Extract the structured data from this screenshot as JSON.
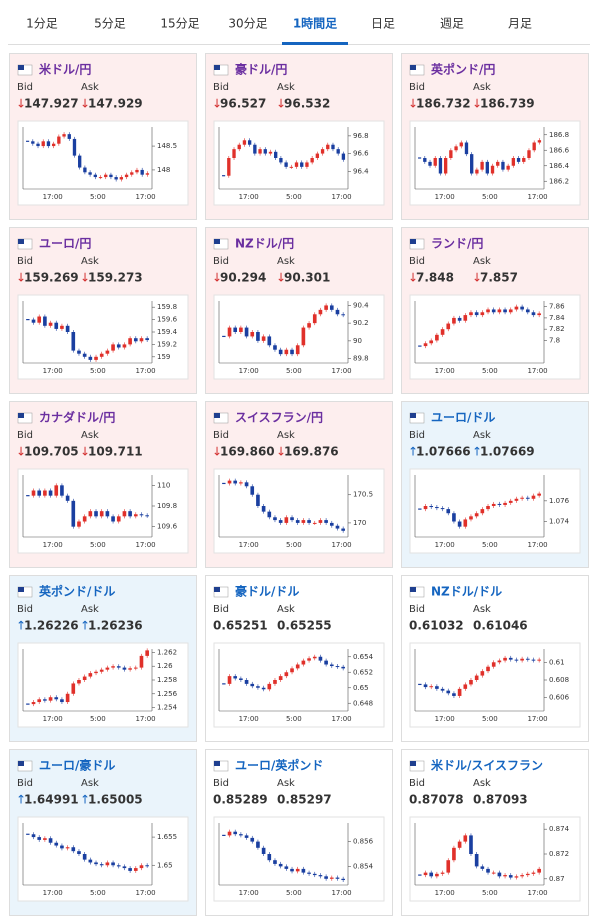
{
  "tabs": [
    "1分足",
    "5分足",
    "15分足",
    "30分足",
    "1時間足",
    "日足",
    "週足",
    "月足"
  ],
  "active_tab": 4,
  "labels": {
    "bid": "Bid",
    "ask": "Ask"
  },
  "cards": [
    {
      "name": "米ドル/円",
      "trend": "down",
      "arrow": "↓",
      "bid": "147.927",
      "ask": "147.929",
      "chart": {
        "type": "candlestick",
        "ylim": [
          147.6,
          148.9
        ],
        "yticks": [
          148,
          148.5
        ],
        "xticks": [
          "17:00",
          "5:00",
          "17:00"
        ],
        "close": [
          148.6,
          148.55,
          148.5,
          148.6,
          148.5,
          148.55,
          148.7,
          148.75,
          148.65,
          148.3,
          148.05,
          147.95,
          147.9,
          147.85,
          147.85,
          147.9,
          147.85,
          147.8,
          147.85,
          147.9,
          147.95,
          148.0,
          147.9,
          147.93
        ]
      }
    },
    {
      "name": "豪ドル/円",
      "trend": "down",
      "arrow": "↓",
      "bid": "96.527",
      "ask": "96.532",
      "chart": {
        "type": "candlestick",
        "ylim": [
          96.2,
          96.9
        ],
        "yticks": [
          96.4,
          96.6,
          96.8
        ],
        "xticks": [
          "17:00",
          "5:00",
          "17:00"
        ],
        "close": [
          96.35,
          96.55,
          96.65,
          96.7,
          96.75,
          96.7,
          96.6,
          96.65,
          96.6,
          96.62,
          96.55,
          96.5,
          96.45,
          96.45,
          96.5,
          96.45,
          96.5,
          96.55,
          96.6,
          96.65,
          96.7,
          96.65,
          96.6,
          96.53
        ]
      }
    },
    {
      "name": "英ポンド/円",
      "trend": "down",
      "arrow": "↓",
      "bid": "186.732",
      "ask": "186.739",
      "chart": {
        "type": "candlestick",
        "ylim": [
          186.1,
          186.9
        ],
        "yticks": [
          186.2,
          186.4,
          186.6,
          186.8
        ],
        "xticks": [
          "17:00",
          "5:00",
          "17:00"
        ],
        "close": [
          186.5,
          186.45,
          186.4,
          186.5,
          186.3,
          186.5,
          186.6,
          186.65,
          186.7,
          186.55,
          186.3,
          186.35,
          186.45,
          186.3,
          186.4,
          186.45,
          186.35,
          186.4,
          186.5,
          186.45,
          186.5,
          186.6,
          186.7,
          186.73
        ]
      }
    },
    {
      "name": "ユーロ/円",
      "trend": "down",
      "arrow": "↓",
      "bid": "159.269",
      "ask": "159.273",
      "chart": {
        "type": "candlestick",
        "ylim": [
          158.9,
          159.9
        ],
        "yticks": [
          159,
          159.2,
          159.4,
          159.6,
          159.8
        ],
        "xticks": [
          "17:00",
          "5:00",
          "17:00"
        ],
        "close": [
          159.6,
          159.55,
          159.65,
          159.5,
          159.55,
          159.45,
          159.5,
          159.4,
          159.1,
          159.05,
          159.0,
          158.95,
          159.0,
          159.05,
          159.1,
          159.2,
          159.15,
          159.2,
          159.3,
          159.25,
          159.3,
          159.27
        ]
      }
    },
    {
      "name": "NZドル/円",
      "trend": "down",
      "arrow": "↓",
      "bid": "90.294",
      "ask": "90.301",
      "chart": {
        "type": "candlestick",
        "ylim": [
          89.75,
          90.45
        ],
        "yticks": [
          89.8,
          90,
          90.2,
          90.4
        ],
        "xticks": [
          "17:00",
          "5:00",
          "17:00"
        ],
        "close": [
          90.05,
          90.15,
          90.1,
          90.15,
          90.05,
          90.1,
          90.0,
          90.05,
          89.95,
          89.9,
          89.85,
          89.9,
          89.85,
          89.95,
          90.15,
          90.2,
          90.3,
          90.35,
          90.4,
          90.35,
          90.3,
          90.29
        ]
      }
    },
    {
      "name": "ランド/円",
      "trend": "down",
      "arrow": "↓",
      "bid": "7.848",
      "ask": "7.857",
      "chart": {
        "type": "candlestick",
        "ylim": [
          7.76,
          7.87
        ],
        "yticks": [
          7.8,
          7.82,
          7.84,
          7.86
        ],
        "xticks": [
          "17:00",
          "5:00",
          "17:00"
        ],
        "close": [
          7.79,
          7.795,
          7.8,
          7.81,
          7.82,
          7.83,
          7.84,
          7.835,
          7.845,
          7.85,
          7.845,
          7.85,
          7.855,
          7.85,
          7.855,
          7.85,
          7.855,
          7.86,
          7.855,
          7.85,
          7.845,
          7.848
        ]
      }
    },
    {
      "name": "カナダドル/円",
      "trend": "down",
      "arrow": "↓",
      "bid": "109.705",
      "ask": "109.711",
      "chart": {
        "type": "candlestick",
        "ylim": [
          109.5,
          110.1
        ],
        "yticks": [
          109.6,
          109.8,
          110
        ],
        "xticks": [
          "17:00",
          "5:00",
          "17:00"
        ],
        "close": [
          109.9,
          109.95,
          109.9,
          109.95,
          109.9,
          110.0,
          109.9,
          109.85,
          109.6,
          109.65,
          109.7,
          109.75,
          109.7,
          109.75,
          109.7,
          109.65,
          109.7,
          109.75,
          109.7,
          109.72,
          109.71,
          109.705
        ]
      }
    },
    {
      "name": "スイスフラン/円",
      "trend": "down",
      "arrow": "↓",
      "bid": "169.860",
      "ask": "169.876",
      "chart": {
        "type": "candlestick",
        "ylim": [
          169.75,
          170.85
        ],
        "yticks": [
          170,
          170.5
        ],
        "xticks": [
          "17:00",
          "5:00",
          "17:00"
        ],
        "close": [
          170.7,
          170.75,
          170.7,
          170.72,
          170.65,
          170.5,
          170.3,
          170.2,
          170.1,
          170.05,
          170.0,
          170.1,
          170.05,
          170.0,
          170.05,
          170.0,
          170.0,
          170.05,
          170.0,
          169.95,
          169.9,
          169.86
        ]
      }
    },
    {
      "name": "ユーロ/ドル",
      "trend": "up",
      "arrow": "↑",
      "bid": "1.07666",
      "ask": "1.07669",
      "chart": {
        "type": "candlestick",
        "ylim": [
          1.0725,
          1.0785
        ],
        "yticks": [
          1.074,
          1.076
        ],
        "xticks": [
          "17:00",
          "5:00",
          "17:00"
        ],
        "close": [
          1.0752,
          1.0755,
          1.0754,
          1.0753,
          1.0752,
          1.0748,
          1.074,
          1.0735,
          1.0742,
          1.0745,
          1.0748,
          1.0752,
          1.0755,
          1.0757,
          1.0756,
          1.0758,
          1.076,
          1.0762,
          1.0763,
          1.0762,
          1.0765,
          1.0767
        ]
      }
    },
    {
      "name": "英ポンド/ドル",
      "trend": "up",
      "arrow": "↑",
      "bid": "1.26226",
      "ask": "1.26236",
      "chart": {
        "type": "candlestick",
        "ylim": [
          1.2535,
          1.2625
        ],
        "yticks": [
          1.254,
          1.256,
          1.258,
          1.26,
          1.262
        ],
        "xticks": [
          "17:00",
          "5:00",
          "17:00"
        ],
        "close": [
          1.2545,
          1.2548,
          1.2552,
          1.255,
          1.2555,
          1.2552,
          1.2548,
          1.256,
          1.2575,
          1.258,
          1.2585,
          1.259,
          1.2592,
          1.2595,
          1.2598,
          1.26,
          1.2598,
          1.2595,
          1.2597,
          1.2598,
          1.2615,
          1.2623
        ]
      }
    },
    {
      "name": "豪ドル/ドル",
      "trend": null,
      "arrow": null,
      "bid": "0.65251",
      "ask": "0.65255",
      "chart": {
        "type": "candlestick",
        "ylim": [
          0.647,
          0.655
        ],
        "yticks": [
          0.648,
          0.65,
          0.652,
          0.654
        ],
        "xticks": [
          "17:00",
          "5:00",
          "17:00"
        ],
        "close": [
          0.6505,
          0.6515,
          0.6512,
          0.651,
          0.6505,
          0.6502,
          0.65,
          0.6498,
          0.6505,
          0.651,
          0.6515,
          0.652,
          0.6525,
          0.653,
          0.6535,
          0.6538,
          0.654,
          0.6535,
          0.653,
          0.6528,
          0.6527,
          0.6525
        ]
      }
    },
    {
      "name": "NZドル/ドル",
      "trend": null,
      "arrow": null,
      "bid": "0.61032",
      "ask": "0.61046",
      "chart": {
        "type": "candlestick",
        "ylim": [
          0.6045,
          0.6115
        ],
        "yticks": [
          0.606,
          0.608,
          0.61
        ],
        "xticks": [
          "17:00",
          "5:00",
          "17:00"
        ],
        "close": [
          0.6075,
          0.6072,
          0.6073,
          0.607,
          0.6068,
          0.6065,
          0.6062,
          0.607,
          0.6075,
          0.608,
          0.6085,
          0.609,
          0.6095,
          0.61,
          0.6102,
          0.6105,
          0.6103,
          0.6102,
          0.6104,
          0.6103,
          0.6102,
          0.6103
        ]
      }
    },
    {
      "name": "ユーロ/豪ドル",
      "trend": "up",
      "arrow": "↑",
      "bid": "1.64991",
      "ask": "1.65005",
      "chart": {
        "type": "candlestick",
        "ylim": [
          1.6465,
          1.6575
        ],
        "yticks": [
          1.65,
          1.655
        ],
        "xticks": [
          "17:00",
          "5:00",
          "17:00"
        ],
        "close": [
          1.6555,
          1.655,
          1.6545,
          1.6548,
          1.654,
          1.6535,
          1.653,
          1.6532,
          1.6525,
          1.652,
          1.651,
          1.6505,
          1.6502,
          1.65,
          1.6505,
          1.65,
          1.6498,
          1.6495,
          1.649,
          1.6495,
          1.65,
          1.6499
        ]
      }
    },
    {
      "name": "ユーロ/英ポンド",
      "trend": null,
      "arrow": null,
      "bid": "0.85289",
      "ask": "0.85297",
      "chart": {
        "type": "candlestick",
        "ylim": [
          0.8525,
          0.8575
        ],
        "yticks": [
          0.854,
          0.856
        ],
        "xticks": [
          "17:00",
          "5:00",
          "17:00"
        ],
        "close": [
          0.8565,
          0.8568,
          0.8566,
          0.8565,
          0.8563,
          0.856,
          0.8555,
          0.855,
          0.8545,
          0.8542,
          0.854,
          0.8538,
          0.8536,
          0.8538,
          0.8535,
          0.8534,
          0.8533,
          0.8532,
          0.853,
          0.8531,
          0.853,
          0.8529
        ]
      }
    },
    {
      "name": "米ドル/スイスフラン",
      "trend": null,
      "arrow": null,
      "bid": "0.87078",
      "ask": "0.87093",
      "chart": {
        "type": "candlestick",
        "ylim": [
          0.8695,
          0.8745
        ],
        "yticks": [
          0.87,
          0.872,
          0.874
        ],
        "xticks": [
          "17:00",
          "5:00",
          "17:00"
        ],
        "close": [
          0.8703,
          0.8705,
          0.8702,
          0.8704,
          0.8705,
          0.8715,
          0.8725,
          0.873,
          0.8735,
          0.872,
          0.871,
          0.8708,
          0.8705,
          0.8705,
          0.8702,
          0.8703,
          0.8701,
          0.8702,
          0.8703,
          0.8704,
          0.8705,
          0.8708
        ]
      }
    }
  ]
}
